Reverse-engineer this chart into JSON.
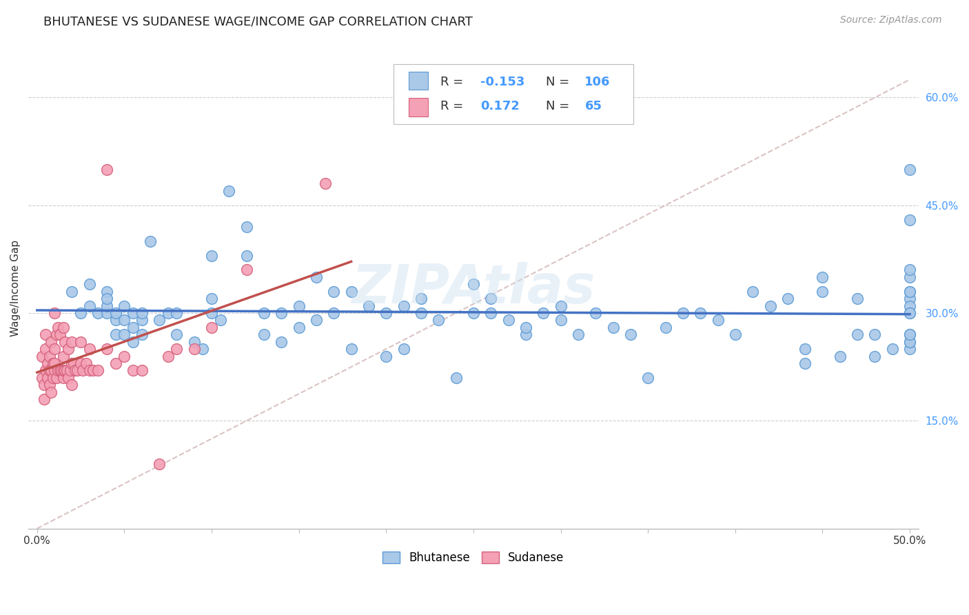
{
  "title": "BHUTANESE VS SUDANESE WAGE/INCOME GAP CORRELATION CHART",
  "source": "Source: ZipAtlas.com",
  "ylabel": "Wage/Income Gap",
  "xlim": [
    0.0,
    0.5
  ],
  "ylim": [
    0.0,
    0.65
  ],
  "xticks": [
    0.0,
    0.05,
    0.1,
    0.15,
    0.2,
    0.25,
    0.3,
    0.35,
    0.4,
    0.45,
    0.5
  ],
  "xtick_labels_major": [
    "0.0%",
    "",
    "",
    "",
    "",
    "",
    "",
    "",
    "",
    "",
    "50.0%"
  ],
  "ytick_labels": [
    "15.0%",
    "30.0%",
    "45.0%",
    "60.0%"
  ],
  "ytick_values": [
    0.15,
    0.3,
    0.45,
    0.6
  ],
  "bhutanese_color": "#aac8e8",
  "sudanese_color": "#f4a0b5",
  "bhutanese_edge": "#5b9bd5",
  "sudanese_edge": "#d4607a",
  "trend_blue": "#4472c4",
  "trend_pink": "#c0504d",
  "trend_gray_dashed": "#ccaaaa",
  "R_blue": -0.153,
  "N_blue": 106,
  "R_pink": 0.172,
  "N_pink": 65,
  "legend_label_blue": "Bhutanese",
  "legend_label_pink": "Sudanese",
  "background_color": "#ffffff",
  "grid_color": "#cccccc",
  "watermark": "ZIPAtlas",
  "bhutanese_x": [
    0.02,
    0.025,
    0.03,
    0.03,
    0.035,
    0.04,
    0.04,
    0.04,
    0.04,
    0.045,
    0.045,
    0.045,
    0.05,
    0.05,
    0.05,
    0.055,
    0.055,
    0.055,
    0.06,
    0.06,
    0.06,
    0.065,
    0.07,
    0.075,
    0.08,
    0.08,
    0.09,
    0.095,
    0.1,
    0.1,
    0.1,
    0.105,
    0.11,
    0.12,
    0.12,
    0.13,
    0.13,
    0.14,
    0.14,
    0.15,
    0.15,
    0.16,
    0.16,
    0.17,
    0.17,
    0.18,
    0.18,
    0.19,
    0.2,
    0.2,
    0.21,
    0.21,
    0.22,
    0.22,
    0.23,
    0.24,
    0.25,
    0.25,
    0.26,
    0.26,
    0.27,
    0.28,
    0.28,
    0.29,
    0.3,
    0.3,
    0.31,
    0.32,
    0.33,
    0.34,
    0.35,
    0.36,
    0.37,
    0.38,
    0.39,
    0.4,
    0.41,
    0.42,
    0.43,
    0.44,
    0.44,
    0.45,
    0.45,
    0.46,
    0.47,
    0.47,
    0.48,
    0.48,
    0.49,
    0.5,
    0.5,
    0.5,
    0.5,
    0.5,
    0.5,
    0.5,
    0.5,
    0.5,
    0.5,
    0.5,
    0.5,
    0.5,
    0.5,
    0.5
  ],
  "bhutanese_y": [
    0.33,
    0.3,
    0.34,
    0.31,
    0.3,
    0.33,
    0.3,
    0.31,
    0.32,
    0.27,
    0.29,
    0.3,
    0.27,
    0.29,
    0.31,
    0.26,
    0.28,
    0.3,
    0.27,
    0.29,
    0.3,
    0.4,
    0.29,
    0.3,
    0.27,
    0.3,
    0.26,
    0.25,
    0.3,
    0.32,
    0.38,
    0.29,
    0.47,
    0.38,
    0.42,
    0.27,
    0.3,
    0.3,
    0.26,
    0.28,
    0.31,
    0.29,
    0.35,
    0.33,
    0.3,
    0.33,
    0.25,
    0.31,
    0.24,
    0.3,
    0.25,
    0.31,
    0.3,
    0.32,
    0.29,
    0.21,
    0.3,
    0.34,
    0.3,
    0.32,
    0.29,
    0.27,
    0.28,
    0.3,
    0.29,
    0.31,
    0.27,
    0.3,
    0.28,
    0.27,
    0.21,
    0.28,
    0.3,
    0.3,
    0.29,
    0.27,
    0.33,
    0.31,
    0.32,
    0.23,
    0.25,
    0.33,
    0.35,
    0.24,
    0.27,
    0.32,
    0.24,
    0.27,
    0.25,
    0.32,
    0.25,
    0.27,
    0.5,
    0.31,
    0.33,
    0.33,
    0.26,
    0.3,
    0.35,
    0.43,
    0.36,
    0.26,
    0.27,
    0.3
  ],
  "sudanese_x": [
    0.003,
    0.003,
    0.004,
    0.004,
    0.005,
    0.005,
    0.005,
    0.006,
    0.006,
    0.007,
    0.007,
    0.007,
    0.008,
    0.008,
    0.008,
    0.009,
    0.009,
    0.01,
    0.01,
    0.01,
    0.01,
    0.011,
    0.011,
    0.012,
    0.012,
    0.013,
    0.013,
    0.014,
    0.015,
    0.015,
    0.015,
    0.015,
    0.016,
    0.016,
    0.017,
    0.018,
    0.018,
    0.019,
    0.02,
    0.02,
    0.02,
    0.021,
    0.022,
    0.023,
    0.025,
    0.025,
    0.026,
    0.028,
    0.03,
    0.03,
    0.032,
    0.035,
    0.04,
    0.04,
    0.045,
    0.05,
    0.055,
    0.06,
    0.07,
    0.075,
    0.08,
    0.09,
    0.1,
    0.12,
    0.165
  ],
  "sudanese_y": [
    0.24,
    0.21,
    0.2,
    0.18,
    0.22,
    0.25,
    0.27,
    0.21,
    0.23,
    0.2,
    0.22,
    0.24,
    0.19,
    0.22,
    0.26,
    0.21,
    0.23,
    0.22,
    0.23,
    0.25,
    0.3,
    0.21,
    0.27,
    0.22,
    0.28,
    0.22,
    0.27,
    0.22,
    0.21,
    0.22,
    0.24,
    0.28,
    0.22,
    0.26,
    0.22,
    0.21,
    0.25,
    0.22,
    0.2,
    0.23,
    0.26,
    0.23,
    0.22,
    0.22,
    0.23,
    0.26,
    0.22,
    0.23,
    0.22,
    0.25,
    0.22,
    0.22,
    0.5,
    0.25,
    0.23,
    0.24,
    0.22,
    0.22,
    0.09,
    0.24,
    0.25,
    0.25,
    0.28,
    0.36,
    0.48
  ]
}
